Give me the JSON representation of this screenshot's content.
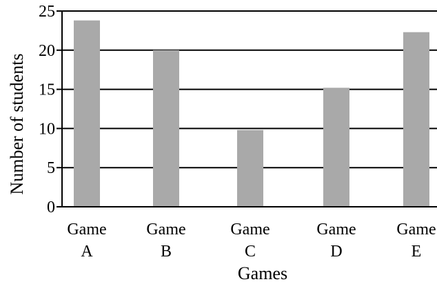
{
  "chart_data": {
    "type": "bar",
    "xlabel": "Games",
    "ylabel": "Number of students",
    "ylim": [
      0,
      25
    ],
    "yticks": [
      0,
      5,
      10,
      15,
      20,
      25
    ],
    "grid": true,
    "categories": [
      {
        "line1": "Game",
        "line2": "A"
      },
      {
        "line1": "Game",
        "line2": "B"
      },
      {
        "line1": "Game",
        "line2": "C"
      },
      {
        "line1": "Game",
        "line2": "D"
      },
      {
        "line1": "Game",
        "line2": "E"
      }
    ],
    "values": [
      23.8,
      20,
      9.8,
      15.2,
      22.3
    ],
    "colors": {
      "bar": "#a9a9a9",
      "grid": "#000000"
    }
  }
}
